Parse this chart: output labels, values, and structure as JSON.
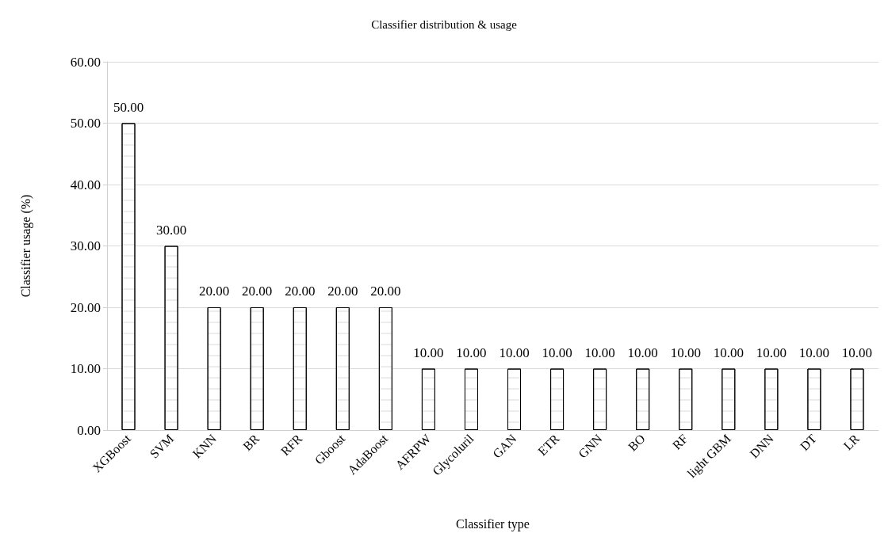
{
  "chart_data": {
    "type": "bar",
    "title": "Classifier distribution & usage",
    "xlabel": "Classifier type",
    "ylabel": "Classifier usage (%)",
    "categories": [
      "XGBoost",
      "SVM",
      "KNN",
      "BR",
      "RFR",
      "Gboost",
      "AdaBoost",
      "AFRPW",
      "Glycoluril",
      "GAN",
      "ETR",
      "GNN",
      "BO",
      "RF",
      "light GBM",
      "DNN",
      "DT",
      "LR"
    ],
    "values": [
      50,
      30,
      20,
      20,
      20,
      20,
      20,
      10,
      10,
      10,
      10,
      10,
      10,
      10,
      10,
      10,
      10,
      10
    ],
    "value_labels": [
      "50.00",
      "30.00",
      "20.00",
      "20.00",
      "20.00",
      "20.00",
      "20.00",
      "10.00",
      "10.00",
      "10.00",
      "10.00",
      "10.00",
      "10.00",
      "10.00",
      "10.00",
      "10.00",
      "10.00",
      "10.00"
    ],
    "color": "#ffffff",
    "ylim": [
      0,
      60
    ],
    "yticks": [
      {
        "value": 0,
        "label": "0.00"
      },
      {
        "value": 10,
        "label": "10.00"
      },
      {
        "value": 20,
        "label": "20.00"
      },
      {
        "value": 30,
        "label": "30.00"
      },
      {
        "value": 40,
        "label": "40.00"
      },
      {
        "value": 50,
        "label": "50.00"
      },
      {
        "value": 60,
        "label": "60.00"
      }
    ],
    "grid": "y"
  }
}
